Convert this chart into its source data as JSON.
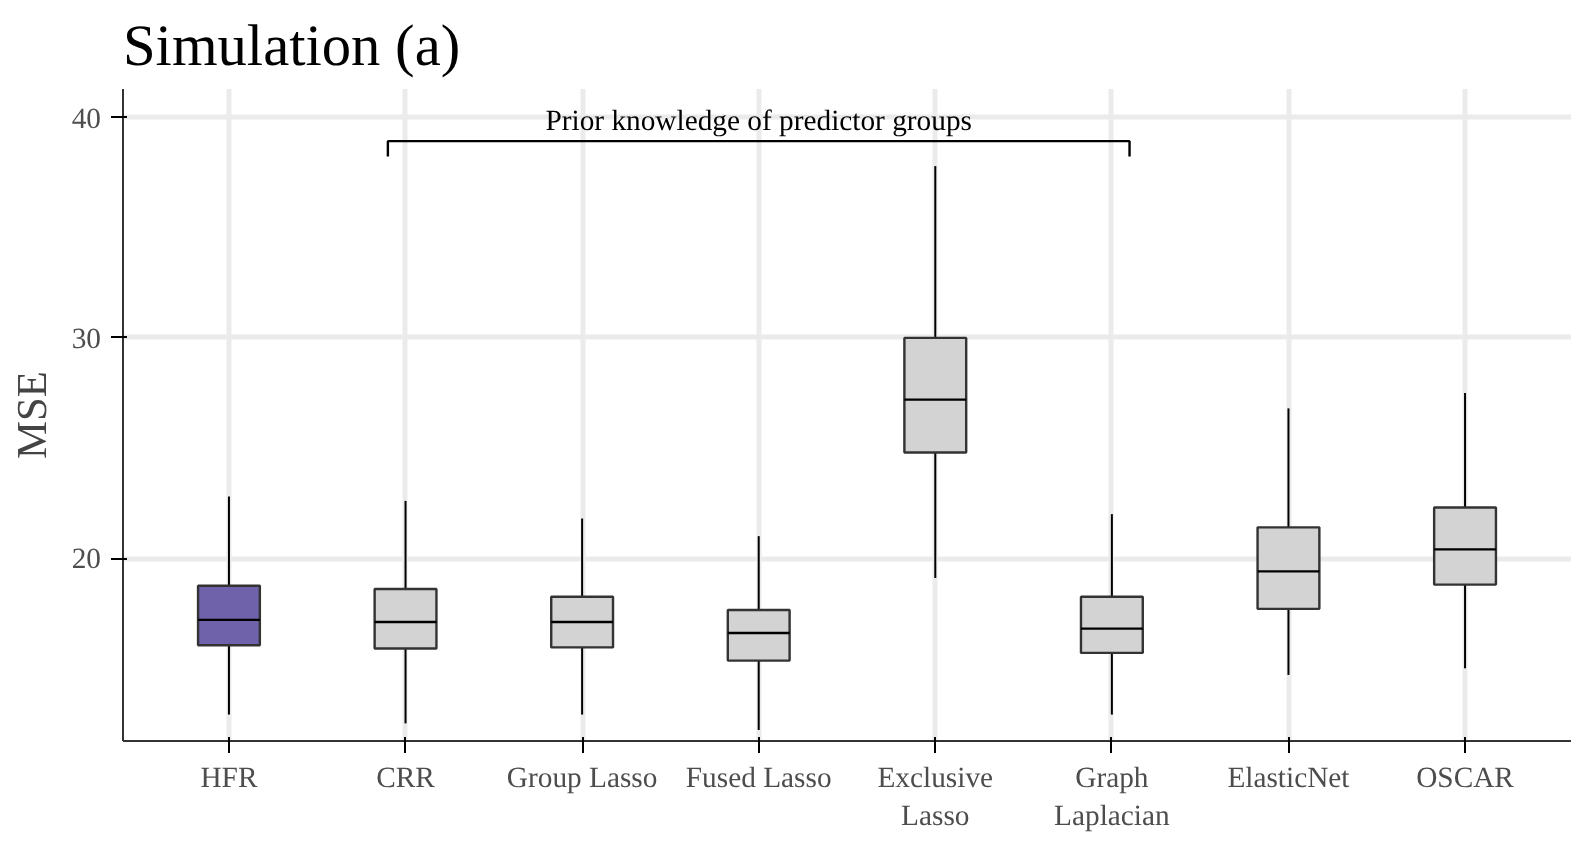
{
  "chart_data": {
    "type": "box",
    "title": "Simulation (a)",
    "ylabel": "MSE",
    "categories": [
      "HFR",
      "CRR",
      "Group Lasso",
      "Fused Lasso",
      "Exclusive\nLasso",
      "Graph\nLaplacian",
      "ElasticNet",
      "OSCAR"
    ],
    "colors": [
      "#6f62aa",
      "#d3d3d3",
      "#d3d3d3",
      "#d3d3d3",
      "#d3d3d3",
      "#d3d3d3",
      "#d3d3d3",
      "#d3d3d3"
    ],
    "boxes": [
      {
        "low": 12.9,
        "q1": 16.05,
        "median": 17.2,
        "q3": 18.75,
        "high": 22.8
      },
      {
        "low": 12.5,
        "q1": 15.9,
        "median": 17.1,
        "q3": 18.6,
        "high": 22.6
      },
      {
        "low": 12.9,
        "q1": 15.95,
        "median": 17.1,
        "q3": 18.25,
        "high": 21.8
      },
      {
        "low": 12.2,
        "q1": 15.35,
        "median": 16.6,
        "q3": 17.65,
        "high": 21.0
      },
      {
        "low": 19.1,
        "q1": 24.8,
        "median": 27.2,
        "q3": 30.0,
        "high": 37.8
      },
      {
        "low": 12.9,
        "q1": 15.7,
        "median": 16.8,
        "q3": 18.25,
        "high": 22.0
      },
      {
        "low": 14.7,
        "q1": 17.7,
        "median": 19.4,
        "q3": 21.4,
        "high": 26.8
      },
      {
        "low": 15.0,
        "q1": 18.8,
        "median": 20.4,
        "q3": 22.3,
        "high": 27.5
      }
    ],
    "ylim": [
      11.7,
      41.3
    ],
    "yticks": [
      20,
      30,
      40
    ],
    "grid": true,
    "annotations": [
      "Prior knowledge of predictor groups"
    ]
  }
}
